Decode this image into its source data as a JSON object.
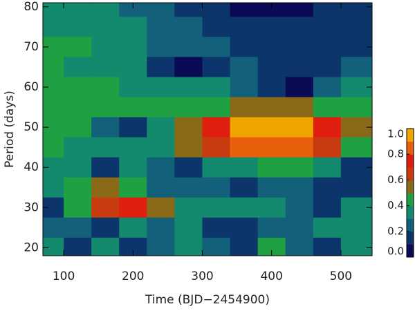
{
  "chart_data": {
    "type": "contour",
    "x_label": "Time (BJD−2454900)",
    "y_label": "Period (days)",
    "x": [
      80,
      120,
      160,
      200,
      240,
      280,
      320,
      360,
      400,
      440,
      480,
      520
    ],
    "y": [
      80,
      75,
      70,
      65,
      60,
      55,
      50,
      45,
      40,
      35,
      30,
      25,
      20
    ],
    "z": [
      [
        0.3,
        0.3,
        0.3,
        0.25,
        0.2,
        0.15,
        0.12,
        0.08,
        0.05,
        0.05,
        0.1,
        0.12
      ],
      [
        0.35,
        0.35,
        0.3,
        0.3,
        0.25,
        0.2,
        0.15,
        0.15,
        0.15,
        0.15,
        0.15,
        0.15
      ],
      [
        0.4,
        0.4,
        0.35,
        0.3,
        0.25,
        0.2,
        0.2,
        0.15,
        0.15,
        0.15,
        0.15,
        0.15
      ],
      [
        0.4,
        0.35,
        0.35,
        0.3,
        0.15,
        0.05,
        0.15,
        0.2,
        0.15,
        0.1,
        0.15,
        0.2
      ],
      [
        0.45,
        0.45,
        0.4,
        0.35,
        0.3,
        0.3,
        0.3,
        0.25,
        0.15,
        0.05,
        0.25,
        0.3
      ],
      [
        0.45,
        0.45,
        0.45,
        0.4,
        0.4,
        0.4,
        0.45,
        0.5,
        0.5,
        0.5,
        0.45,
        0.4
      ],
      [
        0.45,
        0.4,
        0.25,
        0.15,
        0.3,
        0.55,
        0.75,
        0.9,
        0.95,
        0.95,
        0.75,
        0.5
      ],
      [
        0.4,
        0.35,
        0.35,
        0.35,
        0.35,
        0.5,
        0.65,
        0.8,
        0.85,
        0.85,
        0.65,
        0.45
      ],
      [
        0.35,
        0.3,
        0.1,
        0.3,
        0.25,
        0.15,
        0.35,
        0.35,
        0.4,
        0.4,
        0.35,
        0.15
      ],
      [
        0.3,
        0.45,
        0.5,
        0.4,
        0.25,
        0.2,
        0.25,
        0.1,
        0.25,
        0.2,
        0.15,
        0.1
      ],
      [
        0.1,
        0.4,
        0.65,
        0.7,
        0.55,
        0.35,
        0.3,
        0.3,
        0.3,
        0.2,
        0.1,
        0.3
      ],
      [
        0.25,
        0.2,
        0.15,
        0.3,
        0.2,
        0.3,
        0.15,
        0.1,
        0.2,
        0.25,
        0.3,
        0.35
      ],
      [
        0.3,
        0.15,
        0.3,
        0.1,
        0.2,
        0.3,
        0.2,
        0.1,
        0.45,
        0.2,
        0.1,
        0.3
      ]
    ],
    "levels": [
      0,
      0.1,
      0.2,
      0.3,
      0.4,
      0.5,
      0.6,
      0.7,
      0.8,
      0.9,
      1.0
    ],
    "colors": [
      "#0a0a55",
      "#0b356b",
      "#12607a",
      "#138a6e",
      "#1ea043",
      "#8a6a18",
      "#c83a10",
      "#e01e10",
      "#e8600c",
      "#f0a400"
    ],
    "xlim": [
      70,
      545
    ],
    "ylim": [
      18,
      81
    ],
    "xticks": [
      100,
      200,
      300,
      400,
      500
    ],
    "yticks": [
      20,
      30,
      40,
      50,
      60,
      70,
      80
    ],
    "colorbar_ticks": [
      {
        "value": 0,
        "label": "0.0"
      },
      {
        "value": 0.2,
        "label": "0.2"
      },
      {
        "value": 0.4,
        "label": "0.4"
      },
      {
        "value": 0.6,
        "label": "0.6"
      },
      {
        "value": 0.8,
        "label": "0.8"
      },
      {
        "value": 1.0,
        "label": "1.0"
      }
    ]
  }
}
